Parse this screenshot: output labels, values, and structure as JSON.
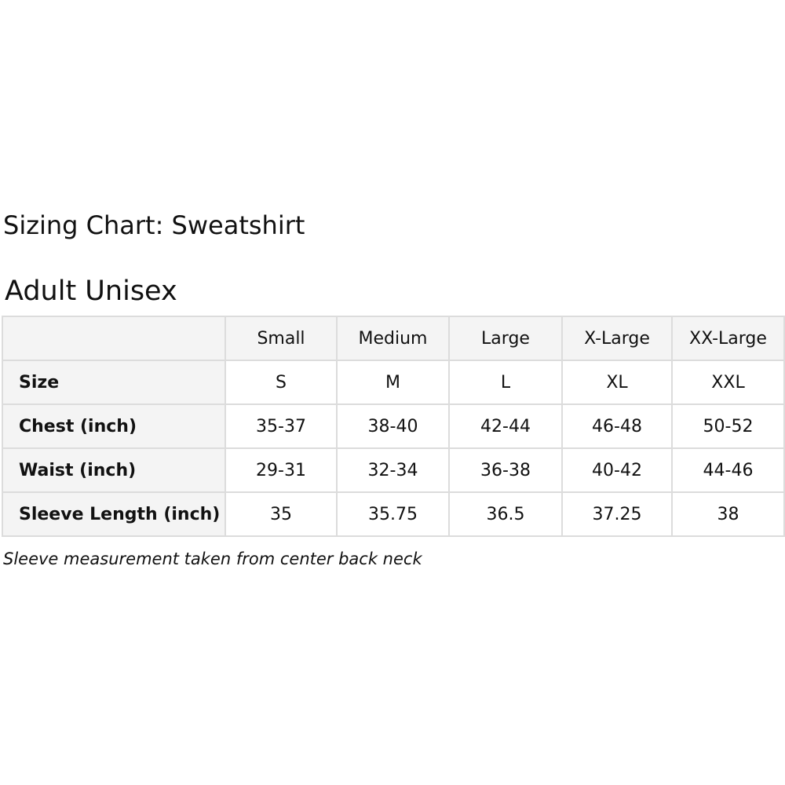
{
  "title": "Sizing Chart: Sweatshirt",
  "subtitle": "Adult Unisex",
  "table": {
    "columns": [
      "",
      "Small",
      "Medium",
      "Large",
      "X-Large",
      "XX-Large"
    ],
    "rows": [
      {
        "label": "Size",
        "values": [
          "S",
          "M",
          "L",
          "XL",
          "XXL"
        ]
      },
      {
        "label": "Chest (inch)",
        "values": [
          "35-37",
          "38-40",
          "42-44",
          "46-48",
          "50-52"
        ]
      },
      {
        "label": "Waist (inch)",
        "values": [
          "29-31",
          "32-34",
          "36-38",
          "40-42",
          "44-46"
        ]
      },
      {
        "label": "Sleeve Length (inch)",
        "values": [
          "35",
          "35.75",
          "36.5",
          "37.25",
          "38"
        ]
      }
    ]
  },
  "note": "Sleeve measurement taken from center back neck"
}
